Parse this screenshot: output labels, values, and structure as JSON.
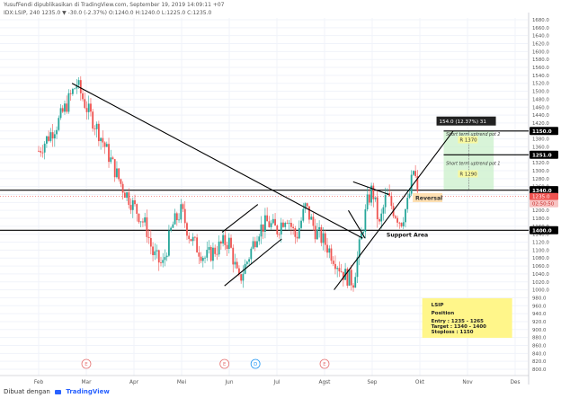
{
  "header": {
    "line1": "YusufFendi dipublikasikan di TradingView.com, September 19, 2019 14:09:11 +07",
    "line2": "IDX:LSIP, 240 1235.0 ▼ -30.0 (-2.37%) O:1240.0 H:1240.0 L:1225.0 C:1235.0"
  },
  "footer": {
    "text": "Dibuat dengan",
    "brand": "TradingView",
    "logo_icon": "tradingview-logo-icon"
  },
  "chart_data": {
    "type": "candlestick",
    "symbol": "IDX:LSIP",
    "interval": "240",
    "ylim": [
      800,
      1690
    ],
    "y_ticks": [
      800,
      820,
      840,
      860,
      880,
      900,
      920,
      940,
      960,
      980,
      1000,
      1020,
      1040,
      1060,
      1080,
      1100,
      1120,
      1140,
      1160,
      1180,
      1200,
      1220,
      1240,
      1260,
      1280,
      1300,
      1320,
      1340,
      1360,
      1380,
      1400,
      1420,
      1440,
      1460,
      1480,
      1500,
      1520,
      1540,
      1560,
      1580,
      1600,
      1620,
      1640,
      1660,
      1680
    ],
    "months": [
      "Feb",
      "Mar",
      "Apr",
      "Mei",
      "Jun",
      "Jul",
      "Agst",
      "Sep",
      "Okt",
      "Nov",
      "Des"
    ],
    "price_path": [
      {
        "t": 0.0,
        "p": 1350
      },
      {
        "t": 0.4,
        "p": 1420
      },
      {
        "t": 0.6,
        "p": 1470
      },
      {
        "t": 0.8,
        "p": 1520
      },
      {
        "t": 1.0,
        "p": 1460
      },
      {
        "t": 1.25,
        "p": 1400
      },
      {
        "t": 1.5,
        "p": 1330
      },
      {
        "t": 1.75,
        "p": 1260
      },
      {
        "t": 2.0,
        "p": 1210
      },
      {
        "t": 2.25,
        "p": 1160
      },
      {
        "t": 2.4,
        "p": 1090
      },
      {
        "t": 2.6,
        "p": 1060
      },
      {
        "t": 2.8,
        "p": 1160
      },
      {
        "t": 3.0,
        "p": 1200
      },
      {
        "t": 3.15,
        "p": 1140
      },
      {
        "t": 3.3,
        "p": 1110
      },
      {
        "t": 3.5,
        "p": 1080
      },
      {
        "t": 3.7,
        "p": 1100
      },
      {
        "t": 3.9,
        "p": 1120
      },
      {
        "t": 4.0,
        "p": 1120
      },
      {
        "t": 4.2,
        "p": 1020
      },
      {
        "t": 4.4,
        "p": 1080
      },
      {
        "t": 4.6,
        "p": 1150
      },
      {
        "t": 4.8,
        "p": 1170
      },
      {
        "t": 5.0,
        "p": 1150
      },
      {
        "t": 5.2,
        "p": 1190
      },
      {
        "t": 5.4,
        "p": 1130
      },
      {
        "t": 5.6,
        "p": 1210
      },
      {
        "t": 5.8,
        "p": 1150
      },
      {
        "t": 6.0,
        "p": 1120
      },
      {
        "t": 6.2,
        "p": 1080
      },
      {
        "t": 6.4,
        "p": 1040
      },
      {
        "t": 6.6,
        "p": 1020
      },
      {
        "t": 6.75,
        "p": 1120
      },
      {
        "t": 6.9,
        "p": 1220
      },
      {
        "t": 7.0,
        "p": 1255
      },
      {
        "t": 7.15,
        "p": 1160
      },
      {
        "t": 7.3,
        "p": 1240
      },
      {
        "t": 7.45,
        "p": 1200
      },
      {
        "t": 7.6,
        "p": 1170
      },
      {
        "t": 7.75,
        "p": 1220
      },
      {
        "t": 7.88,
        "p": 1310
      },
      {
        "t": 7.95,
        "p": 1235
      }
    ],
    "annotations": {
      "support_label": "Support Area",
      "reversal_label": "Reversal",
      "price_box_label": "154.0 (12.37%) 31",
      "tp2_label": "Short term uptrend pot 2",
      "tp1_label": "Short term uptrend pot 1",
      "tp2_price_label": "R 1370",
      "tp1_price_label": "R 1290",
      "level_labels": [
        "1400.0",
        "1340.0",
        "1251.0",
        "1150.0"
      ],
      "current_price": "1235.0",
      "countdown": "02:50:50",
      "horizontal_levels": [
        1150,
        1251,
        1340,
        1400
      ],
      "event_markers": [
        {
          "label": "E",
          "t": 1.0,
          "color": "#e57373"
        },
        {
          "label": "E",
          "t": 3.9,
          "color": "#e57373"
        },
        {
          "label": "D",
          "t": 4.55,
          "color": "#2196f3"
        },
        {
          "label": "E",
          "t": 6.0,
          "color": "#e57373"
        }
      ],
      "trendlines": [
        {
          "p1": {
            "t": 0.7,
            "p": 1520
          },
          "p2": {
            "t": 6.8,
            "p": 1130
          }
        },
        {
          "p1": {
            "t": 3.85,
            "p": 1145
          },
          "p2": {
            "t": 4.6,
            "p": 1215
          }
        },
        {
          "p1": {
            "t": 3.9,
            "p": 1010
          },
          "p2": {
            "t": 5.1,
            "p": 1128
          }
        },
        {
          "p1": {
            "t": 6.2,
            "p": 1000
          },
          "p2": {
            "t": 8.7,
            "p": 1400
          }
        },
        {
          "p1": {
            "t": 6.6,
            "p": 1272
          },
          "p2": {
            "t": 7.35,
            "p": 1240
          }
        },
        {
          "p1": {
            "t": 6.5,
            "p": 1200
          },
          "p2": {
            "t": 6.85,
            "p": 1130
          }
        }
      ],
      "position_box": {
        "title": "LSIP",
        "subtitle": "Position",
        "lines": [
          "Entry : 1235 - 1265",
          "Target : 1340 - 1400",
          "Stoploss : 1150"
        ]
      }
    }
  },
  "colors": {
    "up": "#26a69a",
    "down": "#ef5350",
    "grid": "#f0f3fa",
    "axis_text": "#555555",
    "level_label_bg": "#000000",
    "current_price_bg": "#ef5350",
    "reversal_bg": "#ffe0b2",
    "position_bg": "#fff68a",
    "target_zone": "#c8f0c8",
    "target_line": "#2e7d32"
  }
}
